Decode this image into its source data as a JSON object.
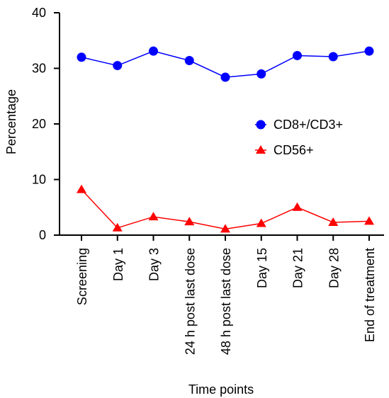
{
  "chart_data": {
    "type": "line",
    "title": "",
    "xlabel": "Time points",
    "ylabel": "Percentage",
    "ylim": [
      0,
      40
    ],
    "yticks": [
      "0",
      "10",
      "20",
      "30",
      "40"
    ],
    "grid": false,
    "legend_position": "right-center",
    "categories": [
      "Screening",
      "Day 1",
      "Day 3",
      "24 h post last dose",
      "48 h post last dose",
      "Day 15",
      "Day 21",
      "Day 28",
      "End of treatment"
    ],
    "series": [
      {
        "name": "CD8+/CD3+",
        "color": "#0000ff",
        "marker": "circle",
        "values": [
          32.0,
          30.5,
          33.1,
          31.4,
          28.4,
          29.0,
          32.3,
          32.1,
          33.1
        ]
      },
      {
        "name": "CD56+",
        "color": "#ff0000",
        "marker": "triangle",
        "values": [
          8.2,
          1.3,
          3.3,
          2.4,
          1.1,
          2.1,
          5.0,
          2.3,
          2.5
        ]
      }
    ]
  }
}
